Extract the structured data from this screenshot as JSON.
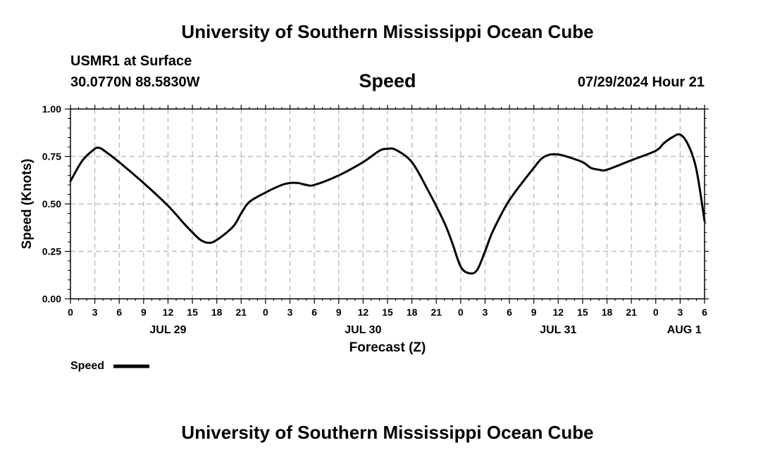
{
  "header": {
    "title": "University of Southern Mississippi Ocean Cube",
    "station": "USMR1 at Surface",
    "coordinates": "30.0770N  88.5830W",
    "timestamp": "07/29/2024 Hour 21"
  },
  "footer": {
    "title": "University of Southern Mississippi Ocean Cube"
  },
  "chart_data": {
    "type": "line",
    "title": "Speed",
    "xlabel": "Forecast (Z)",
    "ylabel": "Speed (Knots)",
    "ylim": [
      0,
      1
    ],
    "xlim": [
      0,
      78
    ],
    "x_unit": "hours since JUL 29 00Z",
    "grid": true,
    "yticks": [
      {
        "value": 0,
        "label": "0.00"
      },
      {
        "value": 0.25,
        "label": "0.25"
      },
      {
        "value": 0.5,
        "label": "0.50"
      },
      {
        "value": 0.75,
        "label": "0.75"
      },
      {
        "value": 1,
        "label": "1.00"
      }
    ],
    "xticks": [
      {
        "value": 0,
        "label": "0"
      },
      {
        "value": 3,
        "label": "3"
      },
      {
        "value": 6,
        "label": "6"
      },
      {
        "value": 9,
        "label": "9"
      },
      {
        "value": 12,
        "label": "12"
      },
      {
        "value": 15,
        "label": "15"
      },
      {
        "value": 18,
        "label": "18"
      },
      {
        "value": 21,
        "label": "21"
      },
      {
        "value": 24,
        "label": "0"
      },
      {
        "value": 27,
        "label": "3"
      },
      {
        "value": 30,
        "label": "6"
      },
      {
        "value": 33,
        "label": "9"
      },
      {
        "value": 36,
        "label": "12"
      },
      {
        "value": 39,
        "label": "15"
      },
      {
        "value": 42,
        "label": "18"
      },
      {
        "value": 45,
        "label": "21"
      },
      {
        "value": 48,
        "label": "0"
      },
      {
        "value": 51,
        "label": "3"
      },
      {
        "value": 54,
        "label": "6"
      },
      {
        "value": 57,
        "label": "9"
      },
      {
        "value": 60,
        "label": "12"
      },
      {
        "value": 63,
        "label": "15"
      },
      {
        "value": 66,
        "label": "18"
      },
      {
        "value": 69,
        "label": "21"
      },
      {
        "value": 72,
        "label": "0"
      },
      {
        "value": 75,
        "label": "3"
      },
      {
        "value": 78,
        "label": "6"
      }
    ],
    "day_labels": [
      {
        "value": 12,
        "label": "JUL 29"
      },
      {
        "value": 36,
        "label": "JUL 30"
      },
      {
        "value": 60,
        "label": "JUL 31"
      },
      {
        "value": 75.5,
        "label": "AUG 1"
      }
    ],
    "series": [
      {
        "name": "Speed",
        "x": [
          0,
          1.5,
          3,
          3.5,
          4,
          6,
          9,
          12,
          14,
          15,
          16,
          17,
          18,
          20,
          21,
          22,
          24,
          26,
          27,
          28,
          29,
          30,
          33,
          36,
          38,
          39,
          40,
          42,
          44,
          46,
          47,
          48,
          49,
          50,
          51,
          52,
          54,
          57,
          58,
          59,
          60,
          61,
          63,
          64,
          65,
          66,
          69,
          72,
          73,
          74,
          75,
          76,
          77,
          78
        ],
        "values": [
          0.62,
          0.73,
          0.79,
          0.795,
          0.785,
          0.72,
          0.61,
          0.49,
          0.395,
          0.35,
          0.31,
          0.295,
          0.31,
          0.38,
          0.45,
          0.51,
          0.56,
          0.6,
          0.61,
          0.61,
          0.6,
          0.6,
          0.65,
          0.72,
          0.78,
          0.79,
          0.785,
          0.72,
          0.57,
          0.4,
          0.29,
          0.17,
          0.135,
          0.15,
          0.25,
          0.36,
          0.52,
          0.69,
          0.74,
          0.76,
          0.76,
          0.75,
          0.72,
          0.69,
          0.68,
          0.68,
          0.73,
          0.78,
          0.82,
          0.85,
          0.865,
          0.81,
          0.68,
          0.41
        ],
        "color": "#000000"
      }
    ],
    "legend": {
      "label": "Speed",
      "placement": "bottom-left"
    }
  }
}
